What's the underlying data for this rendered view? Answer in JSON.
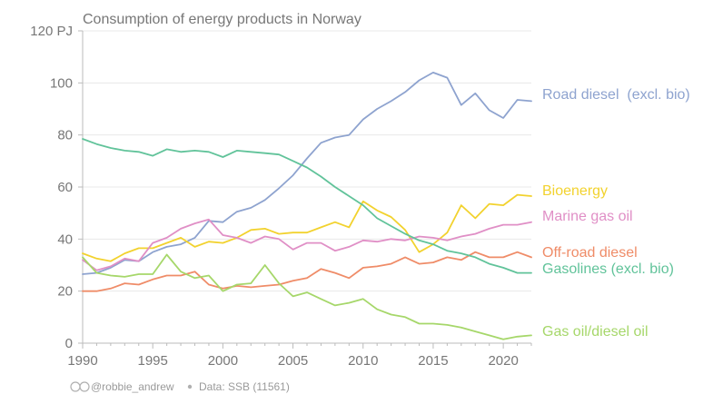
{
  "chart_data": {
    "type": "line",
    "title": "Consumption of energy products in Norway",
    "y_unit": "PJ",
    "xlim": [
      1990,
      2022
    ],
    "ylim": [
      0,
      120
    ],
    "x_ticks": [
      1990,
      1995,
      2000,
      2005,
      2010,
      2015,
      2020
    ],
    "y_ticks": [
      0,
      20,
      40,
      60,
      80,
      100,
      120
    ],
    "y_tick_labels": [
      "0",
      "20",
      "40",
      "60",
      "80",
      "100",
      "120 PJ"
    ],
    "grid": "horizontal",
    "legend": "end-of-line labels",
    "credit": "@robbie_andrew",
    "source": "Data: SSB (11561)",
    "x": [
      1990,
      1991,
      1992,
      1993,
      1994,
      1995,
      1996,
      1997,
      1998,
      1999,
      2000,
      2001,
      2002,
      2003,
      2004,
      2005,
      2006,
      2007,
      2008,
      2009,
      2010,
      2011,
      2012,
      2013,
      2014,
      2015,
      2016,
      2017,
      2018,
      2019,
      2020,
      2021,
      2022
    ],
    "series": [
      {
        "name": "Road diesel  (excl. bio)",
        "color": "#8ea3cf",
        "values": [
          26.5,
          27,
          29,
          32,
          31.5,
          35,
          37,
          38,
          40.5,
          47,
          46.5,
          50.5,
          52,
          55,
          59.5,
          64.5,
          71,
          77,
          79,
          80,
          86,
          90,
          93,
          96.5,
          101,
          104,
          102,
          91.5,
          96,
          89.5,
          86.5,
          93.5,
          93
        ]
      },
      {
        "name": "Bioenergy",
        "color": "#f2d22e",
        "values": [
          34.5,
          32.5,
          31.5,
          34.5,
          36.5,
          36.5,
          38.5,
          40.5,
          37,
          39,
          38.5,
          40.5,
          43.5,
          44,
          42,
          42.5,
          42.5,
          44.5,
          46.5,
          44.5,
          54.5,
          51,
          48.5,
          43.5,
          35,
          38,
          42.5,
          53,
          48,
          53.5,
          53,
          57,
          56.5
        ]
      },
      {
        "name": "Marine gas oil",
        "color": "#e08fc6",
        "values": [
          32,
          28,
          29.5,
          32.5,
          31.5,
          38.5,
          40.5,
          44,
          46,
          47.5,
          41.5,
          40.5,
          38.5,
          41,
          40,
          36,
          38.5,
          38.5,
          35.5,
          37,
          39.5,
          39,
          40,
          39.5,
          41,
          40.5,
          39.5,
          41,
          42,
          44,
          45.5,
          45.5,
          46.5
        ]
      },
      {
        "name": "Off-road diesel",
        "color": "#ef8c68",
        "values": [
          20,
          20,
          21,
          23,
          22.5,
          24.5,
          26,
          26,
          27.5,
          22.5,
          21,
          22,
          21.5,
          22,
          22.5,
          24,
          25,
          28.5,
          27,
          25,
          29,
          29.5,
          30.5,
          33,
          30.5,
          31,
          33,
          32,
          35,
          33,
          33,
          35,
          33
        ]
      },
      {
        "name": "Gasolines (excl. bio)",
        "color": "#61c39a",
        "values": [
          78.5,
          76.5,
          75,
          74,
          73.5,
          72,
          74.5,
          73.5,
          74,
          73.5,
          71.5,
          74,
          73.5,
          73,
          72.5,
          70,
          67.5,
          64,
          60,
          56.5,
          53,
          48,
          45,
          42,
          39.5,
          38,
          35.5,
          34.5,
          33,
          30.5,
          29,
          27,
          27
        ]
      },
      {
        "name": "Gas oil/diesel oil",
        "color": "#a6d76a",
        "values": [
          33,
          27,
          26,
          25.5,
          26.5,
          26.5,
          34,
          27.5,
          25,
          26,
          20,
          22.5,
          23,
          30,
          23,
          18,
          19.5,
          17,
          14.5,
          15.5,
          17,
          13,
          11,
          10,
          7.5,
          7.5,
          7,
          6,
          4.5,
          3,
          1.5,
          2.5,
          3
        ]
      }
    ]
  }
}
